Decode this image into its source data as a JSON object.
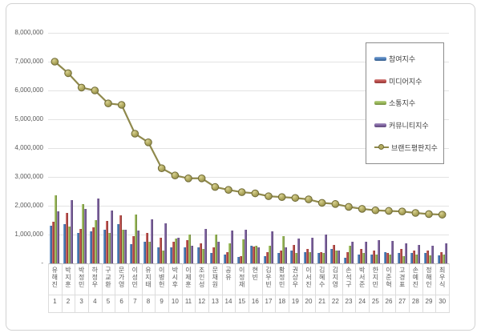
{
  "chart_data": {
    "type": "bar",
    "title": "",
    "xlabel": "",
    "ylabel": "",
    "ylim": [
      0,
      8000000
    ],
    "grid": true,
    "legend_position": "top-right",
    "y_ticks": [
      "8,000,000",
      "7,000,000",
      "6,000,000",
      "5,000,000",
      "4,000,000",
      "3,000,000",
      "2,000,000",
      "1,000,000",
      "-"
    ],
    "categories": [
      "유해진",
      "박지훈",
      "박정민",
      "하정우",
      "구교환",
      "문가영",
      "이성민",
      "유지태",
      "이병헌",
      "박시후",
      "이제훈",
      "조인성",
      "문채원",
      "공유",
      "이정재",
      "현빈",
      "김우빈",
      "황정민",
      "권상우",
      "이서진",
      "김혜수",
      "김지영",
      "손석구",
      "박서준",
      "한지민",
      "이준혁",
      "고경표",
      "손예진",
      "정해인",
      "최우식"
    ],
    "ranks": [
      "1",
      "2",
      "3",
      "4",
      "5",
      "6",
      "7",
      "8",
      "9",
      "10",
      "11",
      "12",
      "13",
      "14",
      "15",
      "16",
      "17",
      "18",
      "19",
      "20",
      "21",
      "22",
      "23",
      "24",
      "25",
      "26",
      "27",
      "28",
      "29",
      "30"
    ],
    "series": [
      {
        "name": "참여지수",
        "type": "bar",
        "color": "#4F81BD",
        "values": [
          1300000,
          1350000,
          1050000,
          1100000,
          1170000,
          1360000,
          670000,
          760000,
          550000,
          550000,
          550000,
          550000,
          350000,
          300000,
          220000,
          600000,
          250000,
          350000,
          450000,
          400000,
          350000,
          500000,
          200000,
          300000,
          300000,
          400000,
          350000,
          350000,
          350000,
          280000
        ]
      },
      {
        "name": "미디어지수",
        "type": "bar",
        "color": "#C0504D",
        "values": [
          1450000,
          1750000,
          1200000,
          1250000,
          1480000,
          1670000,
          940000,
          1060000,
          900000,
          750000,
          800000,
          700000,
          550000,
          400000,
          240000,
          580000,
          400000,
          450000,
          650000,
          500000,
          400000,
          650000,
          400000,
          500000,
          450000,
          350000,
          500000,
          450000,
          450000,
          400000
        ]
      },
      {
        "name": "소통지수",
        "type": "bar",
        "color": "#9BBB59",
        "values": [
          2350000,
          1280000,
          2050000,
          1500000,
          1060000,
          1180000,
          1700000,
          740000,
          450000,
          850000,
          1000000,
          500000,
          1000000,
          700000,
          830000,
          600000,
          620000,
          950000,
          350000,
          400000,
          350000,
          450000,
          600000,
          350000,
          300000,
          300000,
          250000,
          300000,
          280000,
          300000
        ]
      },
      {
        "name": "커뮤니티지수",
        "type": "bar",
        "color": "#8064A2",
        "values": [
          1800000,
          2200000,
          1900000,
          2250000,
          1820000,
          1180000,
          1150000,
          1520000,
          1400000,
          900000,
          600000,
          1200000,
          750000,
          1150000,
          1160000,
          550000,
          1100000,
          550000,
          850000,
          900000,
          1000000,
          450000,
          750000,
          750000,
          800000,
          770000,
          700000,
          650000,
          620000,
          700000
        ]
      },
      {
        "name": "브랜드평판지수",
        "type": "line",
        "color": "#8F894C",
        "marker_fill": "#B3AC61",
        "marker_stroke": "#6F6A35",
        "values": [
          7000000,
          6600000,
          6100000,
          6000000,
          5550000,
          5500000,
          4500000,
          4200000,
          3300000,
          3050000,
          2950000,
          2950000,
          2650000,
          2550000,
          2470000,
          2430000,
          2330000,
          2300000,
          2270000,
          2220000,
          2100000,
          2060000,
          1960000,
          1890000,
          1840000,
          1820000,
          1800000,
          1750000,
          1710000,
          1690000
        ]
      }
    ]
  }
}
